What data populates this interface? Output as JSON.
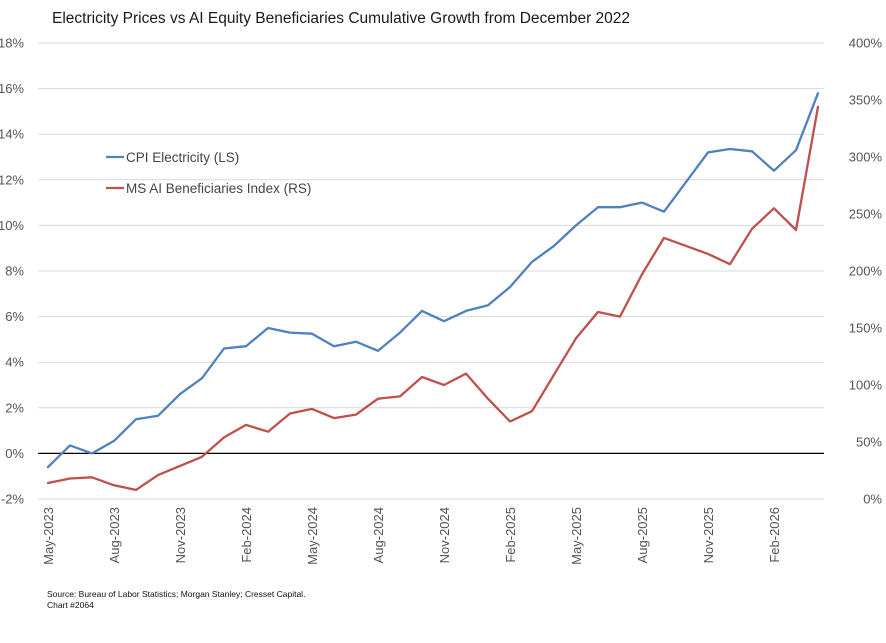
{
  "chart_data": {
    "type": "line",
    "title": "Electricity Prices vs AI Equity Beneficiaries Cumulative Growth from December 2022",
    "y_left_ticks": [
      "18%",
      "16%",
      "14%",
      "12%",
      "10%",
      "8%",
      "6%",
      "4%",
      "2%",
      "0%",
      "-2%"
    ],
    "y_right_ticks": [
      "400%",
      "350%",
      "300%",
      "250%",
      "200%",
      "150%",
      "100%",
      "50%",
      "0%"
    ],
    "ylim_left": [
      -2,
      18
    ],
    "ylim_right": [
      0,
      400
    ],
    "x_tick_labels": [
      "May-2023",
      "Aug-2023",
      "Nov-2023",
      "Feb-2024",
      "May-2024",
      "Aug-2024",
      "Nov-2024",
      "Feb-2025",
      "May-2025",
      "Aug-2025",
      "Nov-2025",
      "Feb-2026"
    ],
    "x": [
      "May-2023",
      "Jun-2023",
      "Jul-2023",
      "Aug-2023",
      "Sep-2023",
      "Oct-2023",
      "Nov-2023",
      "Dec-2023",
      "Jan-2024",
      "Feb-2024",
      "Mar-2024",
      "Apr-2024",
      "May-2024",
      "Jun-2024",
      "Jul-2024",
      "Aug-2024",
      "Sep-2024",
      "Oct-2024",
      "Nov-2024",
      "Dec-2024",
      "Jan-2025",
      "Feb-2025",
      "Mar-2025",
      "Apr-2025",
      "May-2025",
      "Jun-2025",
      "Jul-2025",
      "Aug-2025",
      "Sep-2025",
      "Oct-2025",
      "Nov-2025",
      "Dec-2025",
      "Jan-2026",
      "Feb-2026",
      "Mar-2026",
      "Apr-2026"
    ],
    "series": [
      {
        "name": "CPI Electricity (LS)",
        "axis": "left",
        "color": "#4f81bd",
        "values": [
          -0.6,
          0.35,
          0.0,
          0.55,
          1.5,
          1.65,
          2.6,
          3.3,
          4.6,
          4.7,
          5.5,
          5.3,
          5.25,
          4.7,
          4.9,
          4.5,
          5.3,
          6.25,
          5.8,
          6.25,
          6.5,
          7.3,
          8.4,
          9.1,
          10.0,
          10.8,
          10.8,
          11.0,
          10.6,
          11.9,
          13.2,
          13.35,
          13.25,
          12.4,
          13.3,
          15.8
        ]
      },
      {
        "name": "MS AI Beneficiaries Index (RS)",
        "axis": "right",
        "color": "#c0504d",
        "values": [
          14,
          18,
          19,
          12,
          8,
          21,
          29,
          37,
          54,
          65,
          59,
          75,
          79,
          71,
          74,
          88,
          90,
          107,
          100,
          110,
          88,
          68,
          77,
          109,
          141,
          164,
          160,
          197,
          229,
          222,
          215,
          206,
          237,
          255,
          236,
          344
        ]
      }
    ],
    "legend_placement": "top-left",
    "grid": true
  },
  "source": {
    "line1": "Source: Bureau of Labor Statistics; Morgan Stanley; Cresset Capital.",
    "line2": "Chart #2064"
  }
}
